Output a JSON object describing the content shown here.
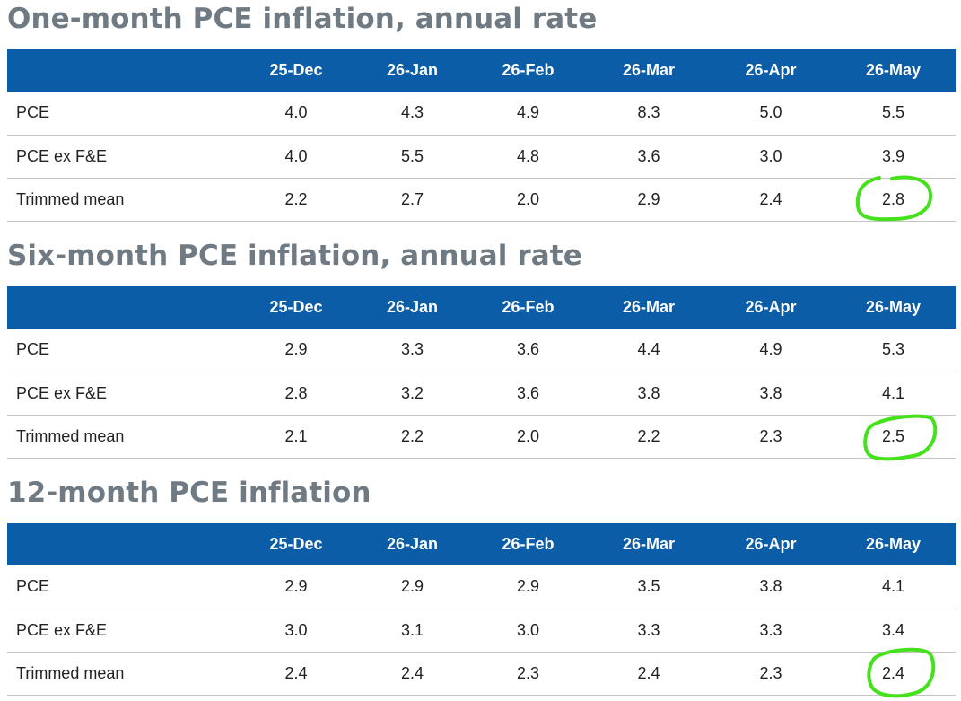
{
  "columns": [
    "25-Dec",
    "26-Jan",
    "26-Feb",
    "26-Mar",
    "26-Apr",
    "26-May"
  ],
  "highlight_color": "#44e11c",
  "header_color": "#0a5da6",
  "title_color": "#707a83",
  "sections": [
    {
      "title": "One-month PCE inflation, annual rate",
      "rows": [
        {
          "label": "PCE",
          "values": [
            "4.0",
            "4.3",
            "4.9",
            "8.3",
            "5.0",
            "5.5"
          ]
        },
        {
          "label": "PCE ex F&E",
          "values": [
            "4.0",
            "5.5",
            "4.8",
            "3.6",
            "3.0",
            "3.9"
          ]
        },
        {
          "label": "Trimmed mean",
          "values": [
            "2.2",
            "2.7",
            "2.0",
            "2.9",
            "2.4",
            "2.8"
          ]
        }
      ]
    },
    {
      "title": "Six-month PCE inflation, annual rate",
      "rows": [
        {
          "label": "PCE",
          "values": [
            "2.9",
            "3.3",
            "3.6",
            "4.4",
            "4.9",
            "5.3"
          ]
        },
        {
          "label": "PCE ex F&E",
          "values": [
            "2.8",
            "3.2",
            "3.6",
            "3.8",
            "3.8",
            "4.1"
          ]
        },
        {
          "label": "Trimmed mean",
          "values": [
            "2.1",
            "2.2",
            "2.0",
            "2.2",
            "2.3",
            "2.5"
          ]
        }
      ]
    },
    {
      "title": "12-month PCE inflation",
      "rows": [
        {
          "label": "PCE",
          "values": [
            "2.9",
            "2.9",
            "2.9",
            "3.5",
            "3.8",
            "4.1"
          ]
        },
        {
          "label": "PCE ex F&E",
          "values": [
            "3.0",
            "3.1",
            "3.0",
            "3.3",
            "3.3",
            "3.4"
          ]
        },
        {
          "label": "Trimmed mean",
          "values": [
            "2.4",
            "2.4",
            "2.3",
            "2.4",
            "2.3",
            "2.4"
          ]
        }
      ]
    }
  ]
}
